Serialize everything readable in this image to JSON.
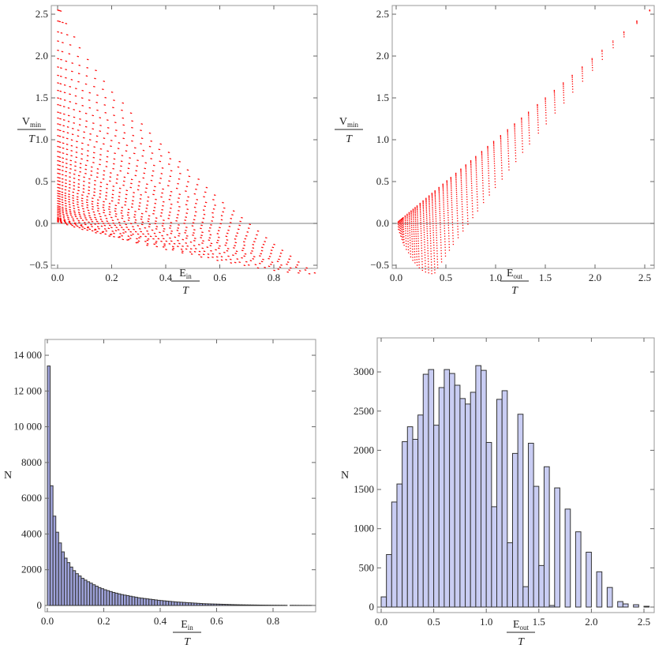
{
  "chart_data": [
    {
      "id": "vmin-vs-ein",
      "type": "scatter",
      "xlabel": {
        "main": "E",
        "sub": "in",
        "den": "T"
      },
      "ylabel": {
        "main": "V",
        "sub": "min",
        "den": "T"
      },
      "xlim": [
        -0.02,
        0.97
      ],
      "ylim": [
        -0.55,
        2.6
      ],
      "xticks": [
        "0.0",
        "0.2",
        "0.4",
        "0.6",
        "0.8"
      ],
      "yticks": [
        "−0.5",
        "0.0",
        "0.5",
        "1.0",
        "1.5",
        "2.0",
        "2.5"
      ],
      "reference_line_y": 0,
      "point_color": "#ff0000",
      "note": "points follow Vmin = Eout - Ein along each band, Ein from 0 to ein_max"
    },
    {
      "id": "vmin-vs-eout",
      "type": "scatter",
      "xlabel": {
        "main": "E",
        "sub": "out",
        "den": "T"
      },
      "ylabel": {
        "main": "V",
        "sub": "min",
        "den": "T"
      },
      "xlim": [
        -0.04,
        2.6
      ],
      "ylim": [
        -0.55,
        2.6
      ],
      "xticks": [
        "0.0",
        "0.5",
        "1.0",
        "1.5",
        "2.0",
        "2.5"
      ],
      "yticks": [
        "−0.5",
        "0.0",
        "0.5",
        "1.0",
        "1.5",
        "2.0",
        "2.5"
      ],
      "reference_line_y": 0,
      "point_color": "#ff0000"
    },
    {
      "id": "hist-ein",
      "type": "bar",
      "xlabel": {
        "main": "E",
        "sub": "in",
        "den": "T"
      },
      "ylabel": {
        "main": "N"
      },
      "xlim": [
        -0.01,
        0.95
      ],
      "ylim": [
        0,
        14800
      ],
      "xticks": [
        "0.0",
        "0.2",
        "0.4",
        "0.6",
        "0.8"
      ],
      "yticks": [
        "0",
        "2000",
        "4000",
        "6000",
        "8000",
        "10 000",
        "12 000",
        "14 000"
      ],
      "bin_start": 0.0,
      "bin_width": 0.01,
      "fill": "#9ea2da",
      "values": [
        13400,
        6700,
        5000,
        4100,
        3500,
        3000,
        2650,
        2400,
        2150,
        1950,
        1780,
        1650,
        1520,
        1420,
        1330,
        1250,
        1160,
        1080,
        1000,
        940,
        880,
        830,
        780,
        730,
        690,
        650,
        610,
        580,
        550,
        520,
        490,
        460,
        430,
        410,
        390,
        370,
        350,
        330,
        310,
        290,
        275,
        260,
        245,
        230,
        215,
        200,
        190,
        180,
        170,
        160,
        150,
        140,
        130,
        120,
        110,
        100,
        95,
        90,
        85,
        80,
        75,
        70,
        65,
        60,
        55,
        50,
        46,
        42,
        38,
        35,
        32,
        30,
        28,
        26,
        24,
        22,
        20,
        18,
        16,
        15,
        14,
        13,
        12,
        11,
        10,
        0,
        9,
        8,
        7,
        6,
        5,
        5,
        4,
        4,
        3
      ]
    },
    {
      "id": "hist-eout",
      "type": "bar",
      "xlabel": {
        "main": "E",
        "sub": "out",
        "den": "T"
      },
      "ylabel": {
        "main": "N"
      },
      "xlim": [
        -0.04,
        2.6
      ],
      "ylim": [
        0,
        3400
      ],
      "xticks": [
        "0.0",
        "0.5",
        "1.0",
        "1.5",
        "2.0",
        "2.5"
      ],
      "yticks": [
        "0",
        "500",
        "1000",
        "1500",
        "2000",
        "2500",
        "3000"
      ],
      "bin_start": 0.0,
      "bin_width": 0.05,
      "fill": "#c9cdf3",
      "values": [
        130,
        670,
        1340,
        1570,
        2110,
        2300,
        2140,
        2450,
        2970,
        3030,
        2320,
        2800,
        3030,
        2980,
        2830,
        2660,
        2590,
        2740,
        3080,
        3020,
        2100,
        1280,
        2650,
        2760,
        820,
        1960,
        2460,
        260,
        2090,
        1540,
        530,
        1790,
        20,
        1520,
        0,
        1250,
        0,
        960,
        0,
        700,
        0,
        450,
        0,
        250,
        0,
        70,
        40,
        0,
        30,
        0,
        10
      ]
    }
  ],
  "bands": {
    "eout": [
      2.55,
      2.42,
      2.29,
      2.18,
      2.07,
      1.97,
      1.87,
      1.77,
      1.68,
      1.59,
      1.5,
      1.42,
      1.33,
      1.26,
      1.19,
      1.12,
      1.05,
      0.98,
      0.92,
      0.86,
      0.8,
      0.75,
      0.7,
      0.65,
      0.6,
      0.55,
      0.51,
      0.47,
      0.43,
      0.39,
      0.36,
      0.33,
      0.3,
      0.27,
      0.24,
      0.21,
      0.19,
      0.17,
      0.15,
      0.13,
      0.11,
      0.09,
      0.07,
      0.06,
      0.05,
      0.04,
      0.03,
      0.02
    ],
    "ein_max": [
      0.01,
      0.03,
      0.06,
      0.08,
      0.11,
      0.14,
      0.17,
      0.2,
      0.24,
      0.27,
      0.31,
      0.34,
      0.38,
      0.41,
      0.45,
      0.48,
      0.52,
      0.55,
      0.58,
      0.61,
      0.65,
      0.68,
      0.71,
      0.74,
      0.77,
      0.8,
      0.83,
      0.86,
      0.89,
      0.92,
      0.95,
      0.93,
      0.89,
      0.85,
      0.8,
      0.74,
      0.69,
      0.64,
      0.59,
      0.53,
      0.46,
      0.4,
      0.33,
      0.29,
      0.24,
      0.19,
      0.14,
      0.09
    ]
  }
}
